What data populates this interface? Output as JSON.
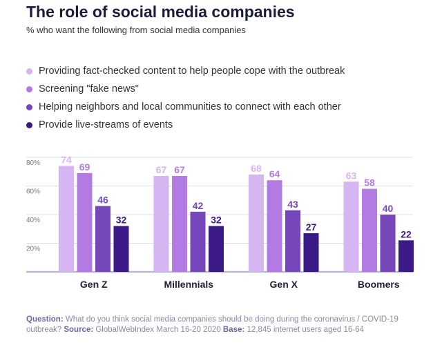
{
  "title": "The role of social media companies",
  "subtitle": "% who want the following from social media companies",
  "colors": [
    "#d5b6f2",
    "#b27be4",
    "#7646bb",
    "#3b1a87"
  ],
  "chart_data": {
    "type": "bar",
    "categories": [
      "Gen Z",
      "Millennials",
      "Gen X",
      "Boomers"
    ],
    "series": [
      {
        "name": "Providing fact-checked content to help people cope with the outbreak",
        "values": [
          74,
          67,
          68,
          63
        ]
      },
      {
        "name": "Screening \"fake news\"",
        "values": [
          69,
          67,
          64,
          58
        ]
      },
      {
        "name": "Helping neighbors and local communities to connect with each other",
        "values": [
          46,
          42,
          43,
          40
        ]
      },
      {
        "name": "Provide live-streams of events",
        "values": [
          32,
          32,
          27,
          22
        ]
      }
    ],
    "ylim": [
      0,
      80
    ],
    "yticks": [
      20,
      40,
      60,
      80
    ],
    "ytick_labels": [
      "20%",
      "40%",
      "60%",
      "80%"
    ],
    "grid": true,
    "legend_position": "top-left"
  },
  "footer": {
    "question_label": "Question:",
    "question_text": " What do you think social media companies should be doing during the coronavirus / COVID-19 outbreak?",
    "source_label": " Source:",
    "source_text": " GlobalWebIndex March 16-20 2020",
    "base_label": " Base:",
    "base_text": " 12,845 internet users aged 16-64"
  }
}
